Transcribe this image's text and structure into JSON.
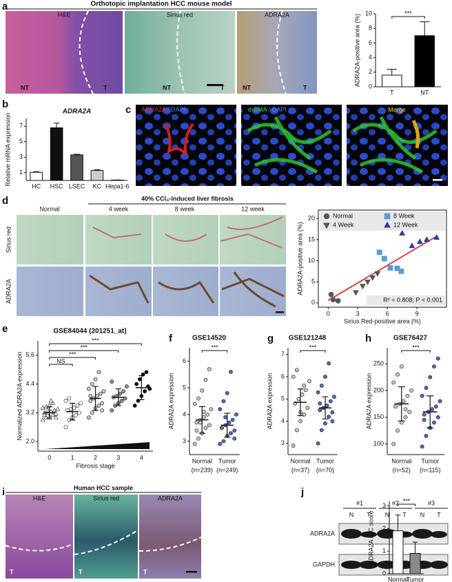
{
  "figure": {
    "panel_labels": [
      "a",
      "b",
      "c",
      "d",
      "e",
      "f",
      "g",
      "h",
      "i",
      "j"
    ],
    "a": {
      "title": "Orthotopic implantation HCC mouse model",
      "image_labels": [
        "H&E",
        "Sirius red",
        "ADRA2A"
      ],
      "region_labels": [
        "NT",
        "T",
        "NT",
        "T",
        "NT",
        "T"
      ]
    },
    "c": {
      "image_labels": [
        [
          "ADRA2A",
          "/ DAPI"
        ],
        [
          "α-SMA",
          "/ DAPI"
        ],
        [
          "Merge"
        ]
      ]
    },
    "d": {
      "title": "40% CCl₄-induced liver fibrosis",
      "columns": [
        "Normal",
        "4 week",
        "8 week",
        "12 week"
      ],
      "rows": [
        "Sirius red",
        "ADRA2A"
      ]
    },
    "i": {
      "title": "Human HCC sample",
      "image_labels": [
        "H&E",
        "Sirius red",
        "ADRA2A"
      ],
      "region_labels": [
        "T",
        "T",
        "T"
      ]
    },
    "j": {
      "groups": [
        "#1",
        "#2",
        "#3"
      ],
      "lanes": [
        "N",
        "T",
        "N",
        "T",
        "N",
        "T"
      ],
      "rows": [
        "ADRA2A",
        "GAPDH"
      ]
    }
  },
  "chart_data": [
    {
      "type": "bar",
      "ylabel": "ADRA2A-positive area (%)",
      "categories": [
        "T",
        "NT"
      ],
      "values": [
        1.6,
        7.0
      ],
      "errors": [
        0.8,
        1.9
      ],
      "colors": [
        "#ffffff",
        "#000000"
      ],
      "ylim": [
        0,
        10
      ],
      "yticks": [
        0,
        2,
        4,
        6,
        8,
        10
      ],
      "significance": [
        "***"
      ]
    },
    {
      "type": "bar",
      "title": "ADRA2A",
      "ylabel": "Relative mRNA expression",
      "categories": [
        "HC",
        "HSC",
        "LSEC",
        "KC",
        "Hepa1-6"
      ],
      "values": [
        1.05,
        6.8,
        3.3,
        1.3,
        0.05
      ],
      "errors": [
        0.08,
        0.6,
        0.08,
        0.08,
        0.02
      ],
      "colors": [
        "#ffffff",
        "#111111",
        "#555555",
        "#cccccc",
        "#ffffff"
      ],
      "ylim": [
        0,
        8
      ],
      "yticks": [
        1,
        3,
        5,
        7
      ]
    },
    {
      "type": "scatter",
      "xlabel": "Sirius Red-positive area (%)",
      "ylabel": "ADRA2A-positive area (%)",
      "xlim": [
        -1,
        12
      ],
      "ylim": [
        -1,
        22
      ],
      "xticks": [
        0,
        3,
        6,
        9
      ],
      "yticks": [
        0,
        5,
        10,
        15,
        20
      ],
      "series": [
        {
          "name": "Normal",
          "color": "#555555",
          "marker": "circle",
          "x": [
            0.3,
            0.5,
            1.0
          ],
          "y": [
            2.0,
            0.8,
            0.5
          ]
        },
        {
          "name": "4 Week",
          "color": "#555555",
          "marker": "triangle-down",
          "x": [
            2.8,
            3.5,
            4.0,
            4.5,
            5.0
          ],
          "y": [
            2.5,
            4.0,
            5.0,
            6.0,
            7.0
          ]
        },
        {
          "name": "8 Week",
          "color": "#5b9bd5",
          "marker": "square",
          "x": [
            5.2,
            5.7,
            6.3,
            7.0,
            7.4
          ],
          "y": [
            12.0,
            10.5,
            8.3,
            8.2,
            7.5
          ]
        },
        {
          "name": "12 Week",
          "color": "#2f3f9f",
          "marker": "triangle-up",
          "x": [
            7.5,
            8.5,
            9.3,
            10.0,
            11.0
          ],
          "y": [
            16.5,
            13.5,
            14.5,
            15.0,
            15.5
          ]
        }
      ],
      "fit_line": {
        "x": [
          0,
          11
        ],
        "y": [
          0.6,
          15.8
        ]
      },
      "fit_color": "#e0302a",
      "annotation": "R² = 0.808; P < 0.001"
    },
    {
      "type": "dotplot",
      "title": "GSE84044 (201251_at)",
      "ylabel": "Normalized ADRA2A expression",
      "xlabel": "Fibrosis stage",
      "categories": [
        "0",
        "1",
        "2",
        "3",
        "4"
      ],
      "ylim": [
        1.6,
        6.2
      ],
      "yticks": [
        {
          "value": 2,
          "label": "2.0"
        },
        {
          "value": 3.2,
          "label": "3.2"
        },
        {
          "value": 4.4,
          "label": "4.4"
        },
        {
          "value": 5.6,
          "label": "5.6"
        }
      ],
      "markers": [
        "triangle-up",
        "circle",
        "circle",
        "circle",
        "circle"
      ],
      "colors": [
        "#ffffff",
        "#ffffff",
        "#c8c8c8",
        "#909090",
        "#111111"
      ],
      "points": [
        [
          2.9,
          3.0,
          3.05,
          3.1,
          3.15,
          3.2,
          3.2,
          3.25,
          3.3,
          3.35,
          3.4,
          3.45,
          3.5,
          3.6,
          3.0,
          3.1,
          3.3,
          3.7
        ],
        [
          2.6,
          2.9,
          3.0,
          3.1,
          3.2,
          3.3,
          3.35,
          3.4,
          3.5,
          3.6,
          3.7,
          3.8
        ],
        [
          3.0,
          3.2,
          3.4,
          3.5,
          3.6,
          3.7,
          3.8,
          3.9,
          4.0,
          4.1,
          4.2,
          4.4,
          4.6,
          4.9,
          3.3,
          3.9
        ],
        [
          3.3,
          3.5,
          3.6,
          3.7,
          3.8,
          3.85,
          3.9,
          4.0,
          4.1,
          4.3,
          4.5
        ],
        [
          3.5,
          3.7,
          3.9,
          4.1,
          4.3,
          4.4,
          4.6,
          4.8,
          4.9,
          4.2
        ]
      ],
      "means": [
        3.2,
        3.25,
        3.8,
        3.85,
        4.25
      ],
      "sd": [
        0.25,
        0.35,
        0.5,
        0.35,
        0.5
      ],
      "significance": [
        "NS",
        "***",
        "***",
        "***"
      ]
    },
    {
      "type": "dotplot",
      "title": "GSE14520",
      "ylabel": "ADRA2A expression",
      "categories": [
        "Normal",
        "Tumor"
      ],
      "count_labels": [
        "(n=239)",
        "(n=249)"
      ],
      "ylim": [
        2.5,
        6.5
      ],
      "yticks": [
        3,
        4,
        5,
        6
      ],
      "markers": [
        "circle",
        "circle"
      ],
      "colors": [
        "#c8c8c8",
        "#4a6fc4"
      ],
      "points": [
        [
          2.9,
          3.1,
          3.3,
          3.5,
          3.6,
          3.7,
          3.8,
          3.9,
          4.0,
          4.2,
          4.4,
          4.6,
          4.9,
          5.3,
          5.7,
          3.4,
          3.7,
          4.1
        ],
        [
          2.9,
          3.0,
          3.2,
          3.3,
          3.4,
          3.5,
          3.6,
          3.7,
          3.8,
          4.0,
          4.2,
          4.5,
          4.8,
          5.6,
          3.1,
          3.5,
          3.9
        ]
      ],
      "means": [
        3.8,
        3.6
      ],
      "sd": [
        0.5,
        0.45
      ],
      "significance": [
        "***"
      ]
    },
    {
      "type": "dotplot",
      "title": "GSE121248",
      "ylabel": "ADRA2A expression",
      "categories": [
        "Normal",
        "Tumor"
      ],
      "count_labels": [
        "(n=37)",
        "(n=70)"
      ],
      "ylim": [
        2.5,
        7.3
      ],
      "yticks": [
        3,
        4,
        5,
        6,
        7
      ],
      "markers": [
        "circle",
        "circle"
      ],
      "colors": [
        "#c8c8c8",
        "#4a6fc4"
      ],
      "points": [
        [
          2.9,
          3.6,
          4.0,
          4.3,
          4.6,
          4.8,
          5.0,
          5.2,
          5.4,
          5.8,
          6.0,
          6.3,
          4.4,
          5.6
        ],
        [
          3.0,
          3.6,
          3.9,
          4.2,
          4.4,
          4.5,
          4.6,
          4.7,
          4.9,
          5.1,
          5.3,
          5.6,
          6.0,
          6.6,
          4.0,
          4.8
        ]
      ],
      "means": [
        4.85,
        4.6
      ],
      "sd": [
        0.6,
        0.5
      ],
      "significance": [
        "***"
      ]
    },
    {
      "type": "dotplot",
      "title": "GSE76427",
      "ylabel": "ADRA2A expression",
      "categories": [
        "Normal",
        "Tumor"
      ],
      "count_labels": [
        "(n=52)",
        "(n=115)"
      ],
      "ylim": [
        80,
        280
      ],
      "yticks": [
        100,
        150,
        200,
        250
      ],
      "markers": [
        "circle",
        "circle"
      ],
      "colors": [
        "#c8c8c8",
        "#4a6fc4"
      ],
      "points": [
        [
          100,
          125,
          140,
          150,
          160,
          170,
          175,
          180,
          190,
          200,
          215,
          230,
          245,
          165
        ],
        [
          95,
          115,
          130,
          140,
          150,
          155,
          160,
          165,
          170,
          180,
          190,
          205,
          225,
          245,
          260,
          145
        ]
      ],
      "means": [
        175,
        160
      ],
      "sd": [
        32,
        30
      ],
      "significance": [
        "***"
      ]
    },
    {
      "type": "bar",
      "ylabel": "ADRA2A IHC score",
      "categories": [
        "Normal",
        "Tumor"
      ],
      "values": [
        1.9,
        0.9
      ],
      "errors": [
        0.7,
        0.5
      ],
      "colors": [
        "#ffffff",
        "#8a8a8a"
      ],
      "ylim": [
        0,
        3.2
      ],
      "yticks": [
        0,
        1,
        2,
        3
      ],
      "significance": [
        "***"
      ]
    }
  ]
}
